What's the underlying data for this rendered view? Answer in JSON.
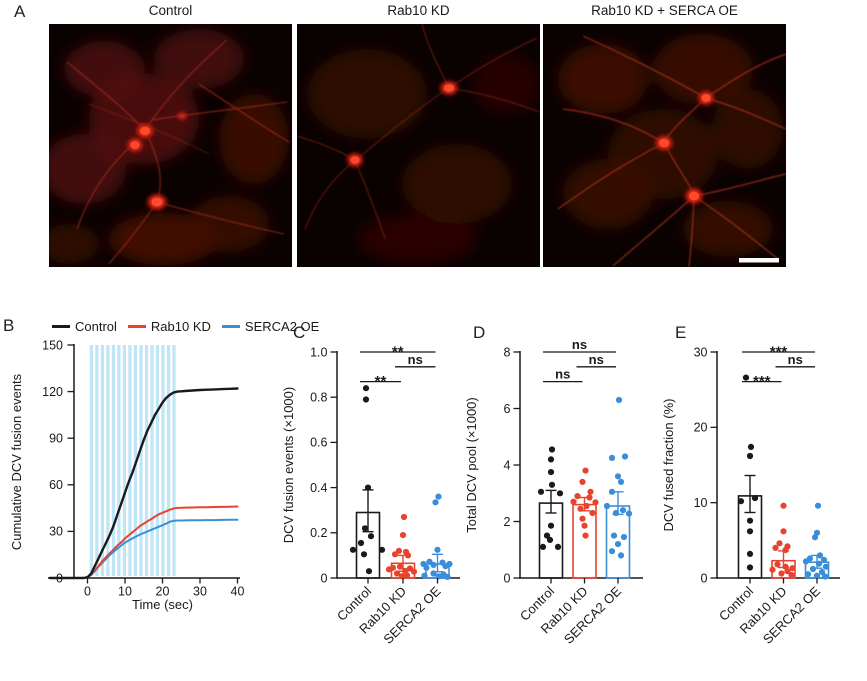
{
  "panel_a": {
    "label": "A",
    "micrographs": [
      {
        "title": "Control"
      },
      {
        "title": "Rab10 KD"
      },
      {
        "title": "Rab10 KD + SERCA OE"
      }
    ],
    "scale_bar": true
  },
  "colors": {
    "control": "#1a1a1a",
    "rab10": "#e8432e",
    "serca2": "#3a8ed9",
    "stim": "#bfe5f7",
    "micro_red": "#ff2a18"
  },
  "chart_data": [
    {
      "id": "B",
      "panel_label": "B",
      "type": "line",
      "xlabel": "Time (sec)",
      "ylabel": "Cumulative DCV fusion events",
      "xlim": [
        -10.5,
        40
      ],
      "ylim": [
        0,
        150
      ],
      "xticks": [
        0,
        10,
        20,
        30,
        40
      ],
      "yticks": [
        0,
        30,
        60,
        90,
        120,
        150
      ],
      "legend_position": "top",
      "stim_bars": {
        "count": 16,
        "start": 0.6,
        "period": 1.47,
        "width": 0.85,
        "ymin": 0,
        "ymax": 150
      },
      "series": [
        {
          "name": "Control",
          "color_key": "control",
          "x": [
            -10,
            -8,
            -6,
            -4,
            -2,
            -1,
            0,
            1,
            2,
            3,
            4,
            5,
            6,
            7,
            8,
            9,
            10,
            11,
            12,
            13,
            14,
            15,
            16,
            17,
            18,
            19,
            20,
            21,
            22,
            23,
            24,
            25,
            26,
            28,
            30,
            32,
            34,
            36,
            38,
            40
          ],
          "y": [
            0,
            0,
            0,
            0,
            0,
            0,
            0.5,
            3,
            8,
            13,
            18,
            23,
            28,
            34,
            41,
            48,
            55,
            62,
            68,
            75,
            82,
            89,
            95,
            100,
            105,
            109,
            113,
            116,
            118,
            119.5,
            120,
            120.2,
            120.4,
            120.7,
            121,
            121.2,
            121.4,
            121.6,
            121.8,
            122
          ]
        },
        {
          "name": "Rab10 KD",
          "color_key": "rab10",
          "x": [
            -10,
            -8,
            -6,
            -4,
            -2,
            -1,
            0,
            1,
            2,
            3,
            4,
            5,
            6,
            7,
            8,
            9,
            10,
            11,
            12,
            13,
            14,
            15,
            16,
            17,
            18,
            19,
            20,
            21,
            22,
            23,
            24,
            25,
            26,
            28,
            30,
            32,
            34,
            36,
            38,
            40
          ],
          "y": [
            0,
            0,
            0,
            0,
            0,
            0,
            0.5,
            2.5,
            5,
            8,
            11,
            13.5,
            16,
            18.5,
            21,
            23,
            25.5,
            27.5,
            29.5,
            31.5,
            33.5,
            35,
            36.5,
            38,
            39.5,
            41,
            42,
            43,
            44,
            44.8,
            45.1,
            45.2,
            45.3,
            45.4,
            45.5,
            45.6,
            45.7,
            45.8,
            45.9,
            46
          ]
        },
        {
          "name": "SERCA2 OE",
          "color_key": "serca2",
          "x": [
            -10,
            -8,
            -6,
            -4,
            -2,
            -1,
            0,
            1,
            2,
            3,
            4,
            5,
            6,
            7,
            8,
            9,
            10,
            11,
            12,
            13,
            14,
            15,
            16,
            17,
            18,
            19,
            20,
            21,
            22,
            23,
            24,
            25,
            26,
            28,
            30,
            32,
            34,
            36,
            38,
            40
          ],
          "y": [
            0,
            0,
            0,
            0,
            0,
            0,
            0.5,
            2,
            4.5,
            7.5,
            10,
            12.5,
            15,
            17,
            19,
            21,
            22.8,
            24.2,
            25.5,
            26.8,
            28,
            29,
            30,
            31,
            32,
            33,
            34,
            35,
            36.3,
            36.8,
            37,
            37,
            37.1,
            37.2,
            37.2,
            37.3,
            37.3,
            37.4,
            37.5,
            37.5
          ]
        }
      ]
    },
    {
      "id": "C",
      "panel_label": "C",
      "type": "bar-scatter",
      "ylabel": "DCV fusion events (×1000)",
      "ylim": [
        0,
        1.0
      ],
      "yticks": [
        0,
        0.2,
        0.4,
        0.6,
        0.8,
        1.0
      ],
      "ytick_labels": [
        "0",
        "0.2",
        "0.4",
        "0.6",
        "0.8",
        "1.0"
      ],
      "categories": [
        "Control",
        "Rab10 KD",
        "SERCA2 OE"
      ],
      "bars": [
        {
          "mean": 0.29,
          "err_lo": 0.205,
          "err_hi": 0.39,
          "color_key": "control",
          "points": [
            [
              -2,
              0.84
            ],
            [
              -2,
              0.79
            ],
            [
              0,
              0.4
            ],
            [
              -3,
              0.22
            ],
            [
              3,
              0.185
            ],
            [
              -7,
              0.155
            ],
            [
              -15,
              0.125
            ],
            [
              14,
              0.125
            ],
            [
              -4,
              0.105
            ],
            [
              1,
              0.03
            ]
          ]
        },
        {
          "mean": 0.065,
          "err_lo": 0.03,
          "err_hi": 0.1,
          "color_key": "rab10",
          "points": [
            [
              1,
              0.27
            ],
            [
              0,
              0.19
            ],
            [
              -4,
              0.12
            ],
            [
              3,
              0.115
            ],
            [
              -8,
              0.105
            ],
            [
              5,
              0.1
            ],
            [
              -3,
              0.05
            ],
            [
              -10,
              0.045
            ],
            [
              7,
              0.042
            ],
            [
              -14,
              0.038
            ],
            [
              2,
              0.032
            ],
            [
              11,
              0.028
            ],
            [
              -6,
              0.02
            ],
            [
              4,
              0.012
            ],
            [
              -1,
              0.008
            ]
          ]
        },
        {
          "mean": 0.062,
          "err_lo": 0.028,
          "err_hi": 0.105,
          "color_key": "serca2",
          "points": [
            [
              1,
              0.36
            ],
            [
              -2,
              0.335
            ],
            [
              0,
              0.125
            ],
            [
              -8,
              0.072
            ],
            [
              5,
              0.068
            ],
            [
              -14,
              0.062
            ],
            [
              12,
              0.062
            ],
            [
              -4,
              0.058
            ],
            [
              8,
              0.052
            ],
            [
              -11,
              0.045
            ],
            [
              -4,
              0.02
            ],
            [
              6,
              0.016
            ],
            [
              -13,
              0.01
            ],
            [
              1,
              0.007
            ],
            [
              10,
              0.005
            ]
          ]
        }
      ],
      "significance": [
        {
          "from": 0,
          "to": 2,
          "label": "**",
          "level": 0
        },
        {
          "from": 1,
          "to": 2,
          "label": "ns",
          "level": 1
        },
        {
          "from": 0,
          "to": 1,
          "label": "**",
          "level": 2
        }
      ]
    },
    {
      "id": "D",
      "panel_label": "D",
      "type": "bar-scatter",
      "ylabel": "Total DCV pool (×1000)",
      "ylim": [
        0,
        8
      ],
      "yticks": [
        0,
        2,
        4,
        6,
        8
      ],
      "ytick_labels": [
        "0",
        "2",
        "4",
        "6",
        "8"
      ],
      "categories": [
        "Control",
        "Rab10 KD",
        "SERCA2 OE"
      ],
      "bars": [
        {
          "mean": 2.65,
          "err_lo": 2.3,
          "err_hi": 3.1,
          "color_key": "control",
          "points": [
            [
              1,
              4.55
            ],
            [
              0,
              4.2
            ],
            [
              0,
              3.75
            ],
            [
              1,
              3.3
            ],
            [
              -10,
              3.05
            ],
            [
              9,
              3.0
            ],
            [
              0,
              1.85
            ],
            [
              -4,
              1.5
            ],
            [
              -1,
              1.35
            ],
            [
              -8,
              1.1
            ],
            [
              7,
              1.1
            ]
          ]
        },
        {
          "mean": 2.6,
          "err_lo": 2.38,
          "err_hi": 2.85,
          "color_key": "rab10",
          "points": [
            [
              1,
              3.8
            ],
            [
              -2,
              3.4
            ],
            [
              6,
              3.05
            ],
            [
              -7,
              2.9
            ],
            [
              5,
              2.85
            ],
            [
              -11,
              2.7
            ],
            [
              11,
              2.68
            ],
            [
              2,
              2.55
            ],
            [
              -4,
              2.45
            ],
            [
              8,
              2.3
            ],
            [
              -2,
              2.1
            ],
            [
              0,
              1.85
            ],
            [
              1,
              1.5
            ]
          ]
        },
        {
          "mean": 2.55,
          "err_lo": 2.25,
          "err_hi": 3.05,
          "color_key": "serca2",
          "points": [
            [
              1,
              6.3
            ],
            [
              7,
              4.3
            ],
            [
              -6,
              4.25
            ],
            [
              0,
              3.6
            ],
            [
              3,
              3.4
            ],
            [
              -6,
              3.05
            ],
            [
              -11,
              2.55
            ],
            [
              5,
              2.4
            ],
            [
              -2,
              2.3
            ],
            [
              11,
              2.28
            ],
            [
              -4,
              1.5
            ],
            [
              6,
              1.45
            ],
            [
              0,
              1.2
            ],
            [
              -6,
              0.95
            ],
            [
              3,
              0.8
            ]
          ]
        }
      ],
      "significance": [
        {
          "from": 0,
          "to": 2,
          "label": "ns",
          "level": 0
        },
        {
          "from": 1,
          "to": 2,
          "label": "ns",
          "level": 1
        },
        {
          "from": 0,
          "to": 1,
          "label": "ns",
          "level": 2
        }
      ]
    },
    {
      "id": "E",
      "panel_label": "E",
      "type": "bar-scatter",
      "ylabel": "DCV fused fraction (%)",
      "ylim": [
        0,
        30
      ],
      "yticks": [
        0,
        10,
        20,
        30
      ],
      "ytick_labels": [
        "0",
        "10",
        "20",
        "30"
      ],
      "categories": [
        "Control",
        "Rab10 KD",
        "SERCA2 OE"
      ],
      "bars": [
        {
          "mean": 10.9,
          "err_lo": 8.7,
          "err_hi": 13.6,
          "color_key": "control",
          "points": [
            [
              -4,
              26.6
            ],
            [
              1,
              17.4
            ],
            [
              0,
              16.2
            ],
            [
              5,
              10.6
            ],
            [
              -9,
              10.2
            ],
            [
              0,
              7.6
            ],
            [
              0,
              6.2
            ],
            [
              0,
              3.2
            ],
            [
              0,
              1.4
            ]
          ]
        },
        {
          "mean": 2.3,
          "err_lo": 1.4,
          "err_hi": 3.6,
          "color_key": "rab10",
          "points": [
            [
              0,
              9.6
            ],
            [
              0,
              6.2
            ],
            [
              -4,
              4.6
            ],
            [
              4,
              4.2
            ],
            [
              -8,
              4.0
            ],
            [
              2,
              3.7
            ],
            [
              -6,
              1.8
            ],
            [
              2,
              1.5
            ],
            [
              9,
              1.3
            ],
            [
              -11,
              1.1
            ],
            [
              4,
              0.9
            ],
            [
              -2,
              0.6
            ],
            [
              8,
              0.4
            ]
          ]
        },
        {
          "mean": 2.1,
          "err_lo": 1.3,
          "err_hi": 3.0,
          "color_key": "serca2",
          "points": [
            [
              1,
              9.6
            ],
            [
              0,
              6.0
            ],
            [
              -2,
              5.4
            ],
            [
              3,
              3.0
            ],
            [
              -7,
              2.6
            ],
            [
              7,
              2.4
            ],
            [
              -11,
              2.2
            ],
            [
              2,
              1.9
            ],
            [
              9,
              1.5
            ],
            [
              -4,
              1.2
            ],
            [
              5,
              0.8
            ],
            [
              -9,
              0.5
            ],
            [
              0,
              0.3
            ],
            [
              8,
              0.2
            ]
          ]
        }
      ],
      "significance": [
        {
          "from": 0,
          "to": 2,
          "label": "***",
          "level": 0
        },
        {
          "from": 1,
          "to": 2,
          "label": "ns",
          "level": 1
        },
        {
          "from": 0,
          "to": 1,
          "label": "***",
          "level": 2
        }
      ]
    }
  ]
}
